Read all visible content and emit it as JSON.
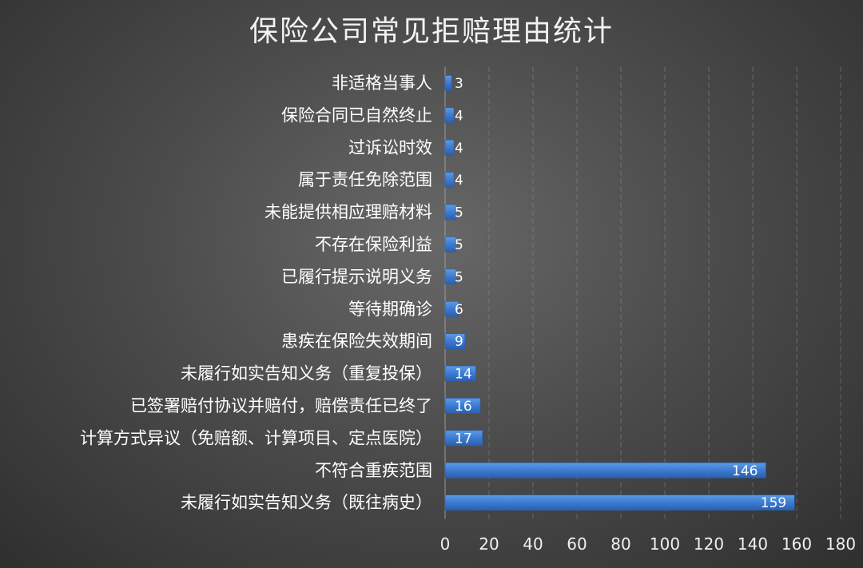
{
  "chart_data": {
    "type": "bar",
    "orientation": "horizontal",
    "title": "保险公司常见拒赔理由统计",
    "categories": [
      "非适格当事人",
      "保险合同已自然终止",
      "过诉讼时效",
      "属于责任免除范围",
      "未能提供相应理赔材料",
      "不存在保险利益",
      "已履行提示说明义务",
      "等待期确诊",
      "患疾在保险失效期间",
      "未履行如实告知义务（重复投保）",
      "已签署赔付协议并赔付，赔偿责任已终了",
      "计算方式异议（免赔额、计算项目、定点医院）",
      "不符合重疾范围",
      "未履行如实告知义务（既往病史）"
    ],
    "values": [
      3,
      4,
      4,
      4,
      5,
      5,
      5,
      6,
      9,
      14,
      16,
      17,
      146,
      159
    ],
    "xlim": [
      0,
      180
    ],
    "x_ticks": [
      0,
      20,
      40,
      60,
      80,
      100,
      120,
      140,
      160,
      180
    ],
    "grid": true,
    "legend": "none",
    "bar_color": "#3f7fd6",
    "background_color": "#4c4c4c"
  }
}
